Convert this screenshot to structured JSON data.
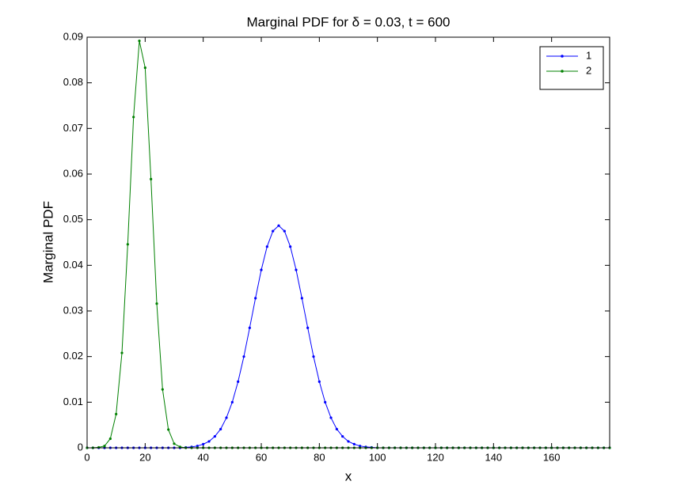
{
  "chart_data": {
    "type": "line",
    "title": "Marginal PDF for δ = 0.03, t = 600",
    "x_label": "x",
    "y_label": "Marginal PDF",
    "x": [
      0,
      2,
      4,
      6,
      8,
      10,
      12,
      14,
      16,
      18,
      20,
      22,
      24,
      26,
      28,
      30,
      32,
      34,
      36,
      38,
      40,
      42,
      44,
      46,
      48,
      50,
      52,
      54,
      56,
      58,
      60,
      62,
      64,
      66,
      68,
      70,
      72,
      74,
      76,
      78,
      80,
      82,
      84,
      86,
      88,
      90,
      92,
      94,
      96,
      98,
      100,
      102,
      104,
      106,
      108,
      110,
      112,
      114,
      116,
      118,
      120,
      122,
      124,
      126,
      128,
      130,
      132,
      134,
      136,
      138,
      140,
      142,
      144,
      146,
      148,
      150,
      152,
      154,
      156,
      158,
      160,
      162,
      164,
      166,
      168,
      170,
      172,
      174,
      176,
      178,
      180
    ],
    "series": [
      {
        "name": "1",
        "color": "#0000ff",
        "values": [
          0,
          0,
          0,
          0,
          0,
          0,
          0,
          0,
          0,
          0,
          0,
          0,
          0,
          0,
          0,
          0,
          0,
          0.0001,
          0.0002,
          0.0004,
          0.0008,
          0.0014,
          0.0025,
          0.0041,
          0.0066,
          0.01,
          0.0145,
          0.02,
          0.0263,
          0.0328,
          0.039,
          0.0441,
          0.0475,
          0.0487,
          0.0475,
          0.0441,
          0.039,
          0.0328,
          0.0263,
          0.02,
          0.0145,
          0.01,
          0.0066,
          0.0041,
          0.0025,
          0.0014,
          0.0008,
          0.0004,
          0.0002,
          0.0001,
          0,
          0,
          0,
          0,
          0,
          0,
          0,
          0,
          0,
          0,
          0,
          0,
          0,
          0,
          0,
          0,
          0,
          0,
          0,
          0,
          0,
          0,
          0,
          0,
          0,
          0,
          0,
          0,
          0,
          0,
          0,
          0,
          0,
          0,
          0,
          0,
          0,
          0,
          0,
          0,
          0
        ]
      },
      {
        "name": "2",
        "color": "#008000",
        "values": [
          0,
          0,
          0.0001,
          0.0004,
          0.002,
          0.0074,
          0.0208,
          0.0446,
          0.0725,
          0.0892,
          0.0833,
          0.0589,
          0.0316,
          0.0128,
          0.004,
          0.0009,
          0.0002,
          0,
          0,
          0,
          0,
          0,
          0,
          0,
          0,
          0,
          0,
          0,
          0,
          0,
          0,
          0,
          0,
          0,
          0,
          0,
          0,
          0,
          0,
          0,
          0,
          0,
          0,
          0,
          0,
          0,
          0,
          0,
          0,
          0,
          0,
          0,
          0,
          0,
          0,
          0,
          0,
          0,
          0,
          0,
          0,
          0,
          0,
          0,
          0,
          0,
          0,
          0,
          0,
          0,
          0,
          0,
          0,
          0,
          0,
          0,
          0,
          0,
          0,
          0,
          0,
          0,
          0,
          0,
          0,
          0,
          0,
          0,
          0,
          0,
          0
        ]
      }
    ],
    "xlim": [
      0,
      180
    ],
    "xticks": [
      0,
      20,
      40,
      60,
      80,
      100,
      120,
      140,
      160
    ],
    "ylim": [
      0,
      0.09
    ],
    "yticks": [
      0,
      0.01,
      0.02,
      0.03,
      0.04,
      0.05,
      0.06,
      0.07,
      0.08,
      0.09
    ],
    "grid": false,
    "legend": "upper-right"
  }
}
